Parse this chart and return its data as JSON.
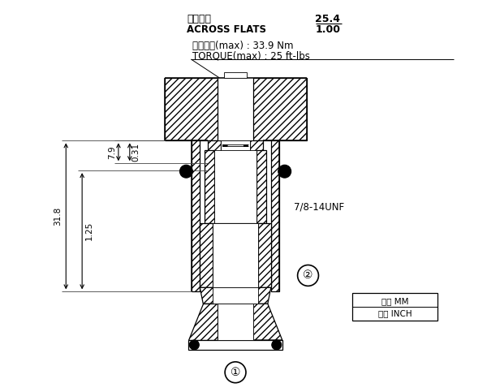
{
  "bg_color": "#ffffff",
  "annotations": {
    "across_flats_label_cn": "對邊寬度",
    "across_flats_label_en": "ACROSS FLATS",
    "across_flats_mm": "25.4",
    "across_flats_inch": "1.00",
    "torque_cn": "安裝扭矩(max) : 33.9 Nm",
    "torque_en": "TORQUE(max) : 25 ft-lbs",
    "thread": "7/8-14UNF",
    "dim_mm_label": "毫米 MM",
    "dim_inch_label": "英寸 INCH",
    "circle1": "①",
    "circle2": "②",
    "dim_79": "7.9",
    "dim_031": "0.31",
    "dim_318": "31.8",
    "dim_125": "1.25"
  },
  "fig_width": 6.0,
  "fig_height": 4.83,
  "dpi": 100
}
